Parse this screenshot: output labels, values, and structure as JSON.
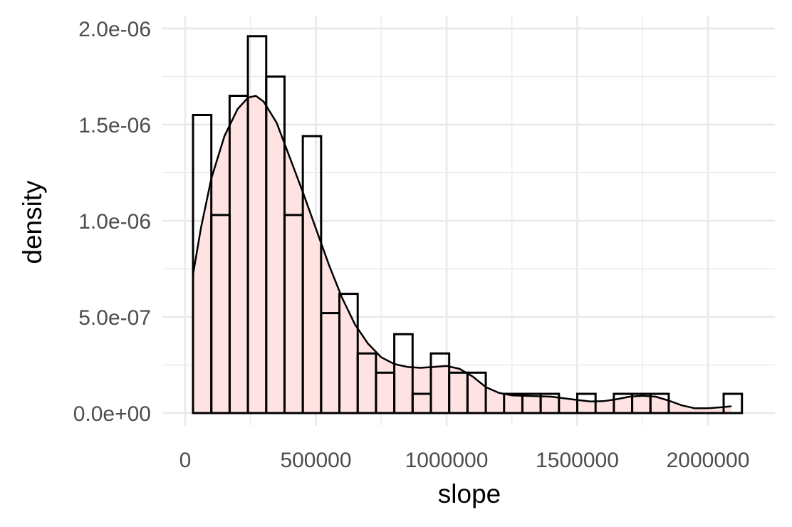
{
  "chart_data": {
    "type": "bar",
    "subtype": "histogram_with_density",
    "title": "",
    "xlabel": "slope",
    "ylabel": "density",
    "xlim": [
      0,
      2250000
    ],
    "ylim": [
      0,
      2e-06
    ],
    "x_ticks": [
      0,
      500000,
      1000000,
      1500000,
      2000000
    ],
    "x_tick_labels": [
      "0",
      "500000",
      "1000000",
      "1500000",
      "2000000"
    ],
    "x_minor_ticks": [
      250000,
      750000,
      1250000,
      1750000
    ],
    "y_ticks": [
      0,
      5e-07,
      1e-06,
      1.5e-06,
      2e-06
    ],
    "y_tick_labels": [
      "0.0e+00",
      "5.0e-07",
      "1.0e-06",
      "1.5e-06",
      "2.0e-06"
    ],
    "y_minor_ticks": [
      2.5e-07,
      7.5e-07,
      1.25e-06,
      1.75e-06
    ],
    "grid": true,
    "histogram": {
      "bin_width": 70000,
      "bin_starts": [
        30000,
        100000,
        170000,
        240000,
        310000,
        380000,
        450000,
        520000,
        590000,
        660000,
        730000,
        800000,
        870000,
        940000,
        1010000,
        1080000,
        1150000,
        1220000,
        1290000,
        1360000,
        1430000,
        1500000,
        1570000,
        1640000,
        1710000,
        1780000,
        1850000,
        1920000,
        1990000,
        2060000
      ],
      "densities": [
        1.55e-06,
        1.03e-06,
        1.65e-06,
        1.96e-06,
        1.75e-06,
        1.03e-06,
        1.44e-06,
        5.2e-07,
        6.2e-07,
        3.1e-07,
        2.1e-07,
        4.1e-07,
        1e-07,
        3.1e-07,
        2.1e-07,
        2.1e-07,
        0,
        1e-07,
        1e-07,
        1e-07,
        0,
        1e-07,
        0,
        1e-07,
        1e-07,
        1e-07,
        0,
        0,
        0,
        1e-07
      ],
      "fill": "none",
      "stroke": "#000000"
    },
    "density_curve": {
      "x": [
        30000,
        60000,
        100000,
        150000,
        200000,
        240000,
        270000,
        300000,
        350000,
        400000,
        450000,
        500000,
        550000,
        600000,
        650000,
        700000,
        750000,
        800000,
        850000,
        900000,
        950000,
        1000000,
        1050000,
        1100000,
        1150000,
        1200000,
        1250000,
        1300000,
        1400000,
        1500000,
        1550000,
        1600000,
        1650000,
        1700000,
        1750000,
        1800000,
        1850000,
        1900000,
        1950000,
        2000000,
        2050000,
        2090000
      ],
      "y": [
        7.2e-07,
        9.6e-07,
        1.22e-06,
        1.44e-06,
        1.58e-06,
        1.64e-06,
        1.65e-06,
        1.62e-06,
        1.51e-06,
        1.33e-06,
        1.15e-06,
        9.6e-07,
        7.7e-07,
        6e-07,
        4.6e-07,
        3.6e-07,
        2.9e-07,
        2.55e-07,
        2.4e-07,
        2.35e-07,
        2.4e-07,
        2.45e-07,
        2.3e-07,
        1.9e-07,
        1.35e-07,
        1.05e-07,
        9.2e-08,
        9e-08,
        8.5e-08,
        6.8e-08,
        6e-08,
        6.2e-08,
        7.2e-08,
        8.5e-08,
        9e-08,
        8.5e-08,
        6.5e-08,
        4e-08,
        2.5e-08,
        2.5e-08,
        3e-08,
        3.5e-08
      ],
      "fill": "#ffe3e3",
      "stroke": "#000000"
    }
  }
}
